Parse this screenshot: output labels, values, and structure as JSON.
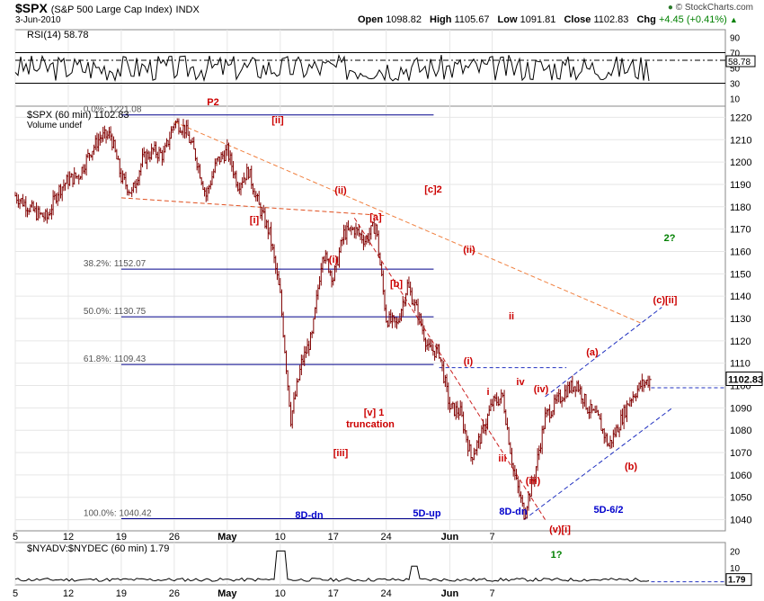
{
  "header": {
    "symbol": "$SPX",
    "name": "(S&P 500 Large Cap Index)",
    "exchange": "INDX",
    "date": "3-Jun-2010",
    "open_label": "Open",
    "open": "1098.82",
    "high_label": "High",
    "high": "1105.67",
    "low_label": "Low",
    "low": "1091.81",
    "close_label": "Close",
    "close": "1102.83",
    "chg_label": "Chg",
    "chg": "+4.45 (+0.41%)",
    "chg_icon": "up-triangle-icon",
    "credit": "© StockCharts.com",
    "credit_icon": "stockcharts-logo-icon"
  },
  "chart_data": [
    {
      "type": "line",
      "title": "RSI(14) 58.78",
      "last_value_label": "58.78",
      "y_ticks": [
        90,
        70,
        50,
        30,
        10
      ],
      "ylim": [
        0,
        100
      ],
      "reference_lines": [
        70,
        30
      ],
      "dashed_level": 60,
      "color": "#000000"
    },
    {
      "type": "candlestick",
      "title": "$SPX (60 min) 1102.83",
      "volume_label": "Volume undef",
      "last_value_label": "1102.83",
      "ylim": [
        1035,
        1225
      ],
      "y_ticks": [
        1220,
        1210,
        1200,
        1190,
        1180,
        1170,
        1160,
        1150,
        1140,
        1130,
        1120,
        1110,
        1100,
        1090,
        1080,
        1070,
        1060,
        1050,
        1040
      ],
      "x_ticks": [
        "5",
        "12",
        "19",
        "26",
        "May",
        "10",
        "17",
        "24",
        "Jun",
        "7"
      ],
      "bar_color": "#800000",
      "anchors": [
        [
          "2010-04-05",
          1185
        ],
        [
          "2010-04-06",
          1181
        ],
        [
          "2010-04-07",
          1177
        ],
        [
          "2010-04-08",
          1175
        ],
        [
          "2010-04-09",
          1187
        ],
        [
          "2010-04-12",
          1192
        ],
        [
          "2010-04-13",
          1194
        ],
        [
          "2010-04-14",
          1204
        ],
        [
          "2010-04-15",
          1211
        ],
        [
          "2010-04-16",
          1212
        ],
        [
          "2010-04-19",
          1193
        ],
        [
          "2010-04-20",
          1186
        ],
        [
          "2010-04-21",
          1201
        ],
        [
          "2010-04-22",
          1205
        ],
        [
          "2010-04-23",
          1203
        ],
        [
          "2010-04-26",
          1218
        ],
        [
          "2010-04-27",
          1215
        ],
        [
          "2010-04-28",
          1203
        ],
        [
          "2010-04-29",
          1185
        ],
        [
          "2010-04-30",
          1200
        ],
        [
          "2010-05-03",
          1205
        ],
        [
          "2010-05-04",
          1190
        ],
        [
          "2010-05-05",
          1196
        ],
        [
          "2010-05-06",
          1180
        ],
        [
          "2010-05-07",
          1168
        ],
        [
          "2010-05-10",
          1140
        ],
        [
          "2010-05-11",
          1085
        ],
        [
          "2010-05-12",
          1110
        ],
        [
          "2010-05-13",
          1122
        ],
        [
          "2010-05-14",
          1160
        ],
        [
          "2010-05-17",
          1148
        ],
        [
          "2010-05-18",
          1168
        ],
        [
          "2010-05-19",
          1170
        ],
        [
          "2010-05-20",
          1165
        ],
        [
          "2010-05-21",
          1172
        ],
        [
          "2010-05-24",
          1130
        ],
        [
          "2010-05-25",
          1127
        ],
        [
          "2010-05-26",
          1145
        ],
        [
          "2010-05-27",
          1132
        ],
        [
          "2010-05-28",
          1116
        ],
        [
          "2010-05-31",
          1115
        ],
        [
          "2010-06-01",
          1090
        ],
        [
          "2010-06-02",
          1088
        ],
        [
          "2010-06-03",
          1068
        ],
        [
          "2010-06-04",
          1078
        ],
        [
          "2010-06-07",
          1092
        ],
        [
          "2010-06-08",
          1095
        ],
        [
          "2010-06-09",
          1062
        ],
        [
          "2010-06-10",
          1043
        ],
        [
          "2010-06-11",
          1060
        ],
        [
          "2010-06-14",
          1086
        ],
        [
          "2010-06-15",
          1092
        ],
        [
          "2010-06-16",
          1098
        ],
        [
          "2010-06-17",
          1101
        ],
        [
          "2010-06-18",
          1090
        ],
        [
          "2010-06-21",
          1085
        ],
        [
          "2010-06-22",
          1073
        ],
        [
          "2010-06-23",
          1083
        ],
        [
          "2010-06-24",
          1094
        ],
        [
          "2010-06-25",
          1100
        ],
        [
          "2010-06-28",
          1103
        ]
      ],
      "fibonacci": [
        {
          "label": "0.0%: 1221.08",
          "value": 1221.08
        },
        {
          "label": "38.2%: 1152.07",
          "value": 1152.07
        },
        {
          "label": "50.0%: 1130.75",
          "value": 1130.75
        },
        {
          "label": "61.8%: 1109.43",
          "value": 1109.43
        },
        {
          "label": "100.0%: 1040.42",
          "value": 1040.42
        }
      ],
      "wave_labels": [
        {
          "text": "P2",
          "color": "#cc0000"
        },
        {
          "text": "[ii]",
          "color": "#cc0000"
        },
        {
          "text": "[i]",
          "color": "#cc0000"
        },
        {
          "text": "(ii)",
          "color": "#cc0000"
        },
        {
          "text": "[c]2",
          "color": "#cc0000"
        },
        {
          "text": "[a]",
          "color": "#cc0000"
        },
        {
          "text": "(i)",
          "color": "#cc0000"
        },
        {
          "text": "[b]",
          "color": "#cc0000"
        },
        {
          "text": "(ii)",
          "color": "#cc0000"
        },
        {
          "text": "ii",
          "color": "#cc0000"
        },
        {
          "text": "(i)",
          "color": "#cc0000"
        },
        {
          "text": "i",
          "color": "#cc0000"
        },
        {
          "text": "iv",
          "color": "#cc0000"
        },
        {
          "text": "(iv)",
          "color": "#cc0000"
        },
        {
          "text": "iii",
          "color": "#cc0000"
        },
        {
          "text": "(iii)",
          "color": "#cc0000"
        },
        {
          "text": "[v] 1",
          "color": "#cc0000"
        },
        {
          "text": "truncation",
          "color": "#cc0000"
        },
        {
          "text": "[iii]",
          "color": "#cc0000"
        },
        {
          "text": "(v)[i]",
          "color": "#cc0000"
        },
        {
          "text": "(a)",
          "color": "#cc0000"
        },
        {
          "text": "(b)",
          "color": "#cc0000"
        },
        {
          "text": "(c)[ii]",
          "color": "#cc0000"
        },
        {
          "text": "2?",
          "color": "#008000"
        },
        {
          "text": "8D-dn",
          "color": "#0000cc"
        },
        {
          "text": "5D-up",
          "color": "#0000cc"
        },
        {
          "text": "8D-dn",
          "color": "#0000cc"
        },
        {
          "text": "5D-6/2",
          "color": "#0000cc"
        }
      ]
    },
    {
      "type": "line",
      "title": "$NYADV:$NYDEC (60 min) 1.79",
      "last_value_label": "1.79",
      "y_ticks": [
        20,
        10
      ],
      "ylim": [
        0,
        25
      ],
      "dashed_level": 1.79,
      "color": "#000000"
    }
  ]
}
